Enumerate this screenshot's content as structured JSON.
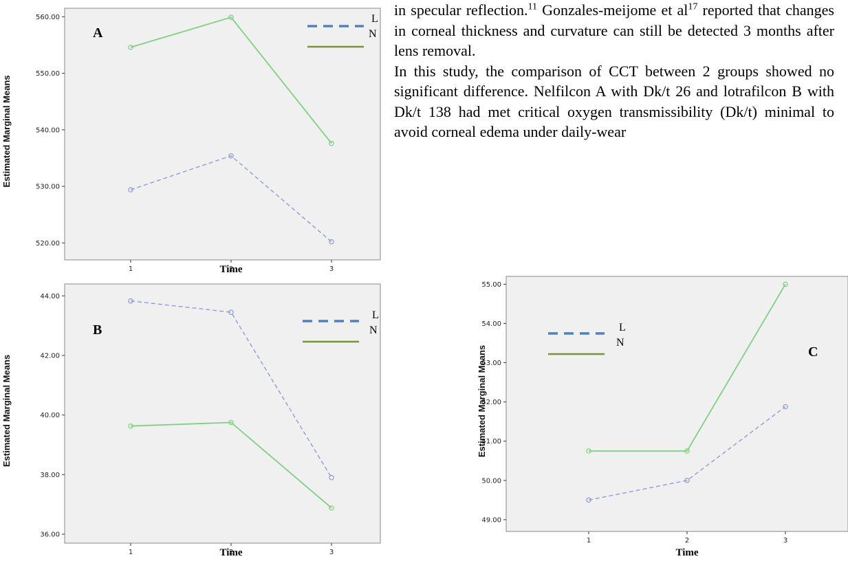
{
  "text": {
    "p1_pre": "in specular reflection.",
    "p1_ref1": "11",
    "p1_mid": " Gonzales-meijome et al",
    "p1_ref2": "17",
    "p1_post": " reported that changes in corneal thickness and curvature can still be detected 3 months after lens removal.",
    "p2": "In this study, the comparison of CCT between 2 groups showed no significant difference. Nelfilcon A with Dk/t 26 and lotrafilcon B with Dk/t 138 had met critical oxygen transmissibility (Dk/t) minimal to avoid corneal edema under daily-wear"
  },
  "colors": {
    "L": "#8e9bd9",
    "N": "#7fd07f",
    "legend_L": "#4f81bd",
    "legend_N": "#77933c",
    "panel_bg": "#f0f0f0"
  },
  "chart_data": [
    {
      "type": "line",
      "panel": "A",
      "xlabel": "Time",
      "ylabel": "Estimated Marginal Means",
      "x": [
        "1",
        "2",
        "3"
      ],
      "ylim": [
        517,
        561.5
      ],
      "yticks": [
        "520.00",
        "530.00",
        "540.00",
        "550.00",
        "560.00"
      ],
      "yticks_num": [
        520,
        530,
        540,
        550,
        560
      ],
      "legend_placement": "top-right",
      "series": [
        {
          "name": "L",
          "style": "dashed",
          "values": [
            529.4,
            535.4,
            520.2
          ]
        },
        {
          "name": "N",
          "style": "solid",
          "values": [
            554.6,
            559.9,
            537.6
          ]
        }
      ]
    },
    {
      "type": "line",
      "panel": "B",
      "xlabel": "Time",
      "ylabel": "Estimated Marginal Means",
      "x": [
        "1",
        "2",
        "3"
      ],
      "ylim": [
        35.7,
        44.4
      ],
      "yticks": [
        "36.00",
        "38.00",
        "40.00",
        "42.00",
        "44.00"
      ],
      "yticks_num": [
        36,
        38,
        40,
        42,
        44
      ],
      "legend_placement": "top-right",
      "series": [
        {
          "name": "L",
          "style": "dashed",
          "values": [
            43.83,
            43.45,
            37.9
          ]
        },
        {
          "name": "N",
          "style": "solid",
          "values": [
            39.63,
            39.75,
            36.88
          ]
        }
      ]
    },
    {
      "type": "line",
      "panel": "C",
      "xlabel": "Time",
      "ylabel": "Estimated Marginal Means",
      "x": [
        "1",
        "2",
        "3"
      ],
      "ylim": [
        48.7,
        55.2
      ],
      "yticks": [
        "49.00",
        "50.00",
        "51.00",
        "52.00",
        "53.00",
        "54.00",
        "55.00"
      ],
      "yticks_num": [
        49,
        50,
        51,
        52,
        53,
        54,
        55
      ],
      "legend_placement": "top-left",
      "series": [
        {
          "name": "L",
          "style": "dashed",
          "values": [
            49.5,
            50.0,
            51.88
          ]
        },
        {
          "name": "N",
          "style": "solid",
          "values": [
            50.75,
            50.75,
            55.0
          ]
        }
      ]
    }
  ]
}
